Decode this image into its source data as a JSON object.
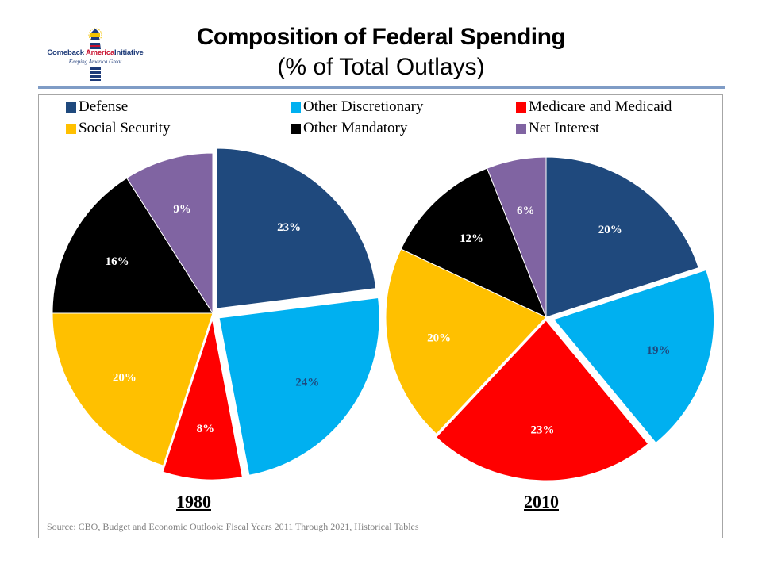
{
  "logo": {
    "name_part1": "Comeback ",
    "name_part2": "America",
    "name_part3": "Initiative",
    "tagline": "Keeping America Great"
  },
  "title": "Composition of Federal Spending",
  "subtitle": "(% of Total Outlays)",
  "source": "Source: CBO, Budget and Economic Outlook: Fiscal Years 2011 Through 2021, Historical Tables",
  "chart_data": {
    "type": "pie",
    "legend": [
      {
        "name": "Defense",
        "color": "#1f497d"
      },
      {
        "name": "Other Discretionary",
        "color": "#00b0f0"
      },
      {
        "name": "Medicare and Medicaid",
        "color": "#ff0000"
      },
      {
        "name": "Social Security",
        "color": "#ffc000"
      },
      {
        "name": "Other Mandatory",
        "color": "#000000"
      },
      {
        "name": "Net Interest",
        "color": "#8064a2"
      }
    ],
    "legend_position": "top",
    "pies": [
      {
        "label": "1980",
        "slices": [
          {
            "name": "Defense",
            "value": 23,
            "label": "23%"
          },
          {
            "name": "Other Discretionary",
            "value": 24,
            "label": "24%"
          },
          {
            "name": "Medicare and Medicaid",
            "value": 8,
            "label": "8%"
          },
          {
            "name": "Social Security",
            "value": 20,
            "label": "20%"
          },
          {
            "name": "Other Mandatory",
            "value": 16,
            "label": "16%"
          },
          {
            "name": "Net Interest",
            "value": 9,
            "label": "9%"
          }
        ]
      },
      {
        "label": "2010",
        "slices": [
          {
            "name": "Defense",
            "value": 20,
            "label": "20%"
          },
          {
            "name": "Other Discretionary",
            "value": 19,
            "label": "19%"
          },
          {
            "name": "Medicare and Medicaid",
            "value": 23,
            "label": "23%"
          },
          {
            "name": "Social Security",
            "value": 20,
            "label": "20%"
          },
          {
            "name": "Other Mandatory",
            "value": 12,
            "label": "12%"
          },
          {
            "name": "Net Interest",
            "value": 6,
            "label": "6%"
          }
        ]
      }
    ]
  }
}
